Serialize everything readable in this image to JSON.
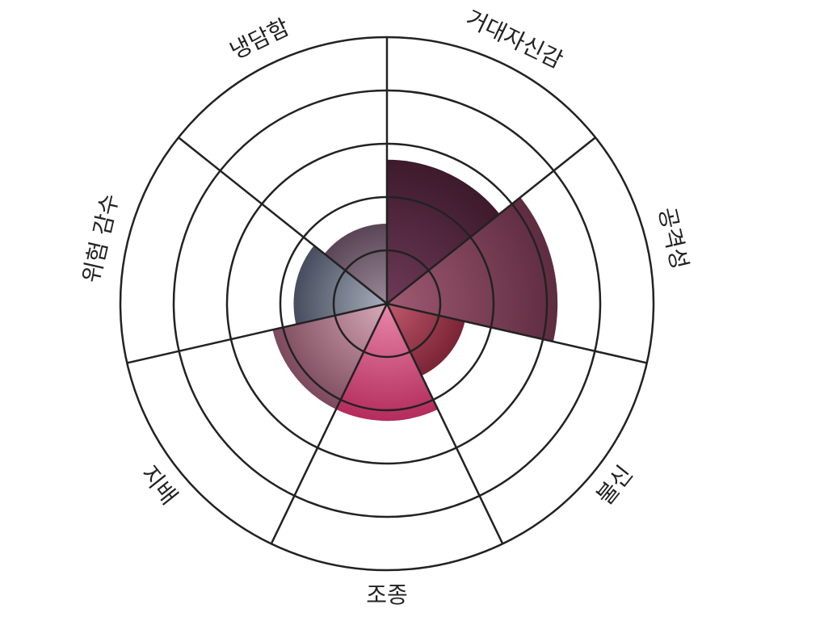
{
  "chart_data": {
    "type": "polar-area",
    "title": "",
    "categories": [
      "거대자신감",
      "공격성",
      "불신",
      "조종",
      "지배",
      "위험 감수",
      "냉담함"
    ],
    "values": [
      2.7,
      3.2,
      1.5,
      2.2,
      2.2,
      1.75,
      1.5
    ],
    "rlim": [
      0,
      5
    ],
    "rings": [
      1,
      2,
      3,
      4,
      5
    ],
    "grid": true,
    "colors": [
      "#3d1a2c",
      "#5e2c40",
      "#7a2436",
      "#b42c5c",
      "#7c4a5c",
      "#474d5e",
      "#5a4556"
    ],
    "center_colors": [
      "#6e3a58",
      "#a05a72",
      "#c05a6c",
      "#e888aa",
      "#d8aab8",
      "#a8aebb",
      "#9a8a98"
    ]
  }
}
